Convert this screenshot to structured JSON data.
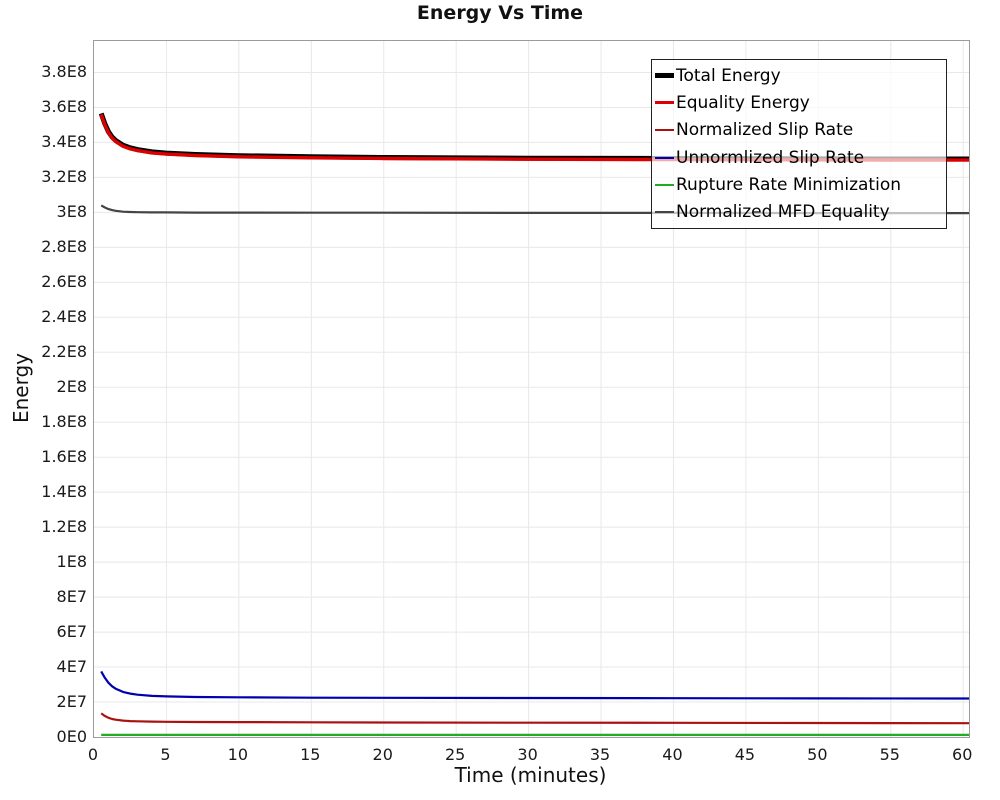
{
  "chart_data": {
    "type": "line",
    "title": "Energy Vs Time",
    "xlabel": "Time (minutes)",
    "ylabel": "Energy",
    "xlim": [
      0,
      60.4
    ],
    "ylim": [
      0,
      398000000
    ],
    "grid": true,
    "legend_position": "upper-right",
    "x_ticks": [
      0,
      5,
      10,
      15,
      20,
      25,
      30,
      35,
      40,
      45,
      50,
      55,
      60
    ],
    "x_tick_labels": [
      "0",
      "5",
      "10",
      "15",
      "20",
      "25",
      "30",
      "35",
      "40",
      "45",
      "50",
      "55",
      "60"
    ],
    "y_ticks": [
      0,
      20000000,
      40000000,
      60000000,
      80000000,
      100000000,
      120000000,
      140000000,
      160000000,
      180000000,
      200000000,
      220000000,
      240000000,
      260000000,
      280000000,
      300000000,
      320000000,
      340000000,
      360000000,
      380000000
    ],
    "y_tick_labels": [
      "0E0",
      "2E7",
      "4E7",
      "6E7",
      "8E7",
      "1E8",
      "1.2E8",
      "1.4E8",
      "1.6E8",
      "1.8E8",
      "2E8",
      "2.2E8",
      "2.4E8",
      "2.6E8",
      "2.8E8",
      "3E8",
      "3.2E8",
      "3.4E8",
      "3.6E8",
      "3.8E8"
    ],
    "x": [
      0.5,
      0.75,
      1,
      1.25,
      1.5,
      2,
      2.5,
      3,
      4,
      5,
      7,
      10,
      15,
      20,
      30,
      40,
      50,
      60,
      60.4
    ],
    "series": [
      {
        "name": "Total Energy",
        "color": "#000000",
        "line_width": 5,
        "values": [
          356600000,
          350600000,
          346100000,
          343100000,
          341100000,
          338400000,
          336900000,
          335900000,
          334600000,
          333900000,
          333100000,
          332400000,
          331800000,
          331400000,
          331000000,
          330800000,
          330600000,
          330500000,
          330500000
        ]
      },
      {
        "name": "Equality Energy",
        "color": "#dd0000",
        "line_width": 3.4,
        "values": [
          356000000,
          350000000,
          345500000,
          342500000,
          340500000,
          337800000,
          336300000,
          335300000,
          334000000,
          333300000,
          332500000,
          331800000,
          331200000,
          330800000,
          330400000,
          330200000,
          330000000,
          329900000,
          329900000
        ]
      },
      {
        "name": "Normalized Slip Rate",
        "color": "#aa1111",
        "line_width": 2.2,
        "values": [
          13500000,
          12000000,
          11000000,
          10300000,
          9900000,
          9400000,
          9100000,
          9000000,
          8800000,
          8700000,
          8600000,
          8500000,
          8400000,
          8300000,
          8200000,
          8100000,
          8000000,
          7900000,
          7900000
        ]
      },
      {
        "name": "Unnormlized Slip Rate",
        "color": "#0000b0",
        "line_width": 2.2,
        "values": [
          37500000,
          33800000,
          31000000,
          29000000,
          27600000,
          25800000,
          24800000,
          24200000,
          23500000,
          23200000,
          22900000,
          22700000,
          22500000,
          22400000,
          22300000,
          22200000,
          22100000,
          22000000,
          22000000
        ]
      },
      {
        "name": "Rupture Rate Minimization",
        "color": "#22aa22",
        "line_width": 2.2,
        "values": [
          1200000,
          1200000,
          1200000,
          1200000,
          1200000,
          1200000,
          1200000,
          1200000,
          1200000,
          1200000,
          1200000,
          1200000,
          1200000,
          1200000,
          1200000,
          1200000,
          1200000,
          1200000,
          1200000
        ]
      },
      {
        "name": "Normalized MFD Equality",
        "color": "#444444",
        "line_width": 2.2,
        "values": [
          304000000,
          302800000,
          301900000,
          301300000,
          300900000,
          300400000,
          300200000,
          300100000,
          300000000,
          300000000,
          299900000,
          299900000,
          299800000,
          299800000,
          299700000,
          299700000,
          299600000,
          299600000,
          299600000
        ]
      }
    ],
    "gridline_color": "#e8e8e8",
    "border_color": "#9b9b9b"
  }
}
